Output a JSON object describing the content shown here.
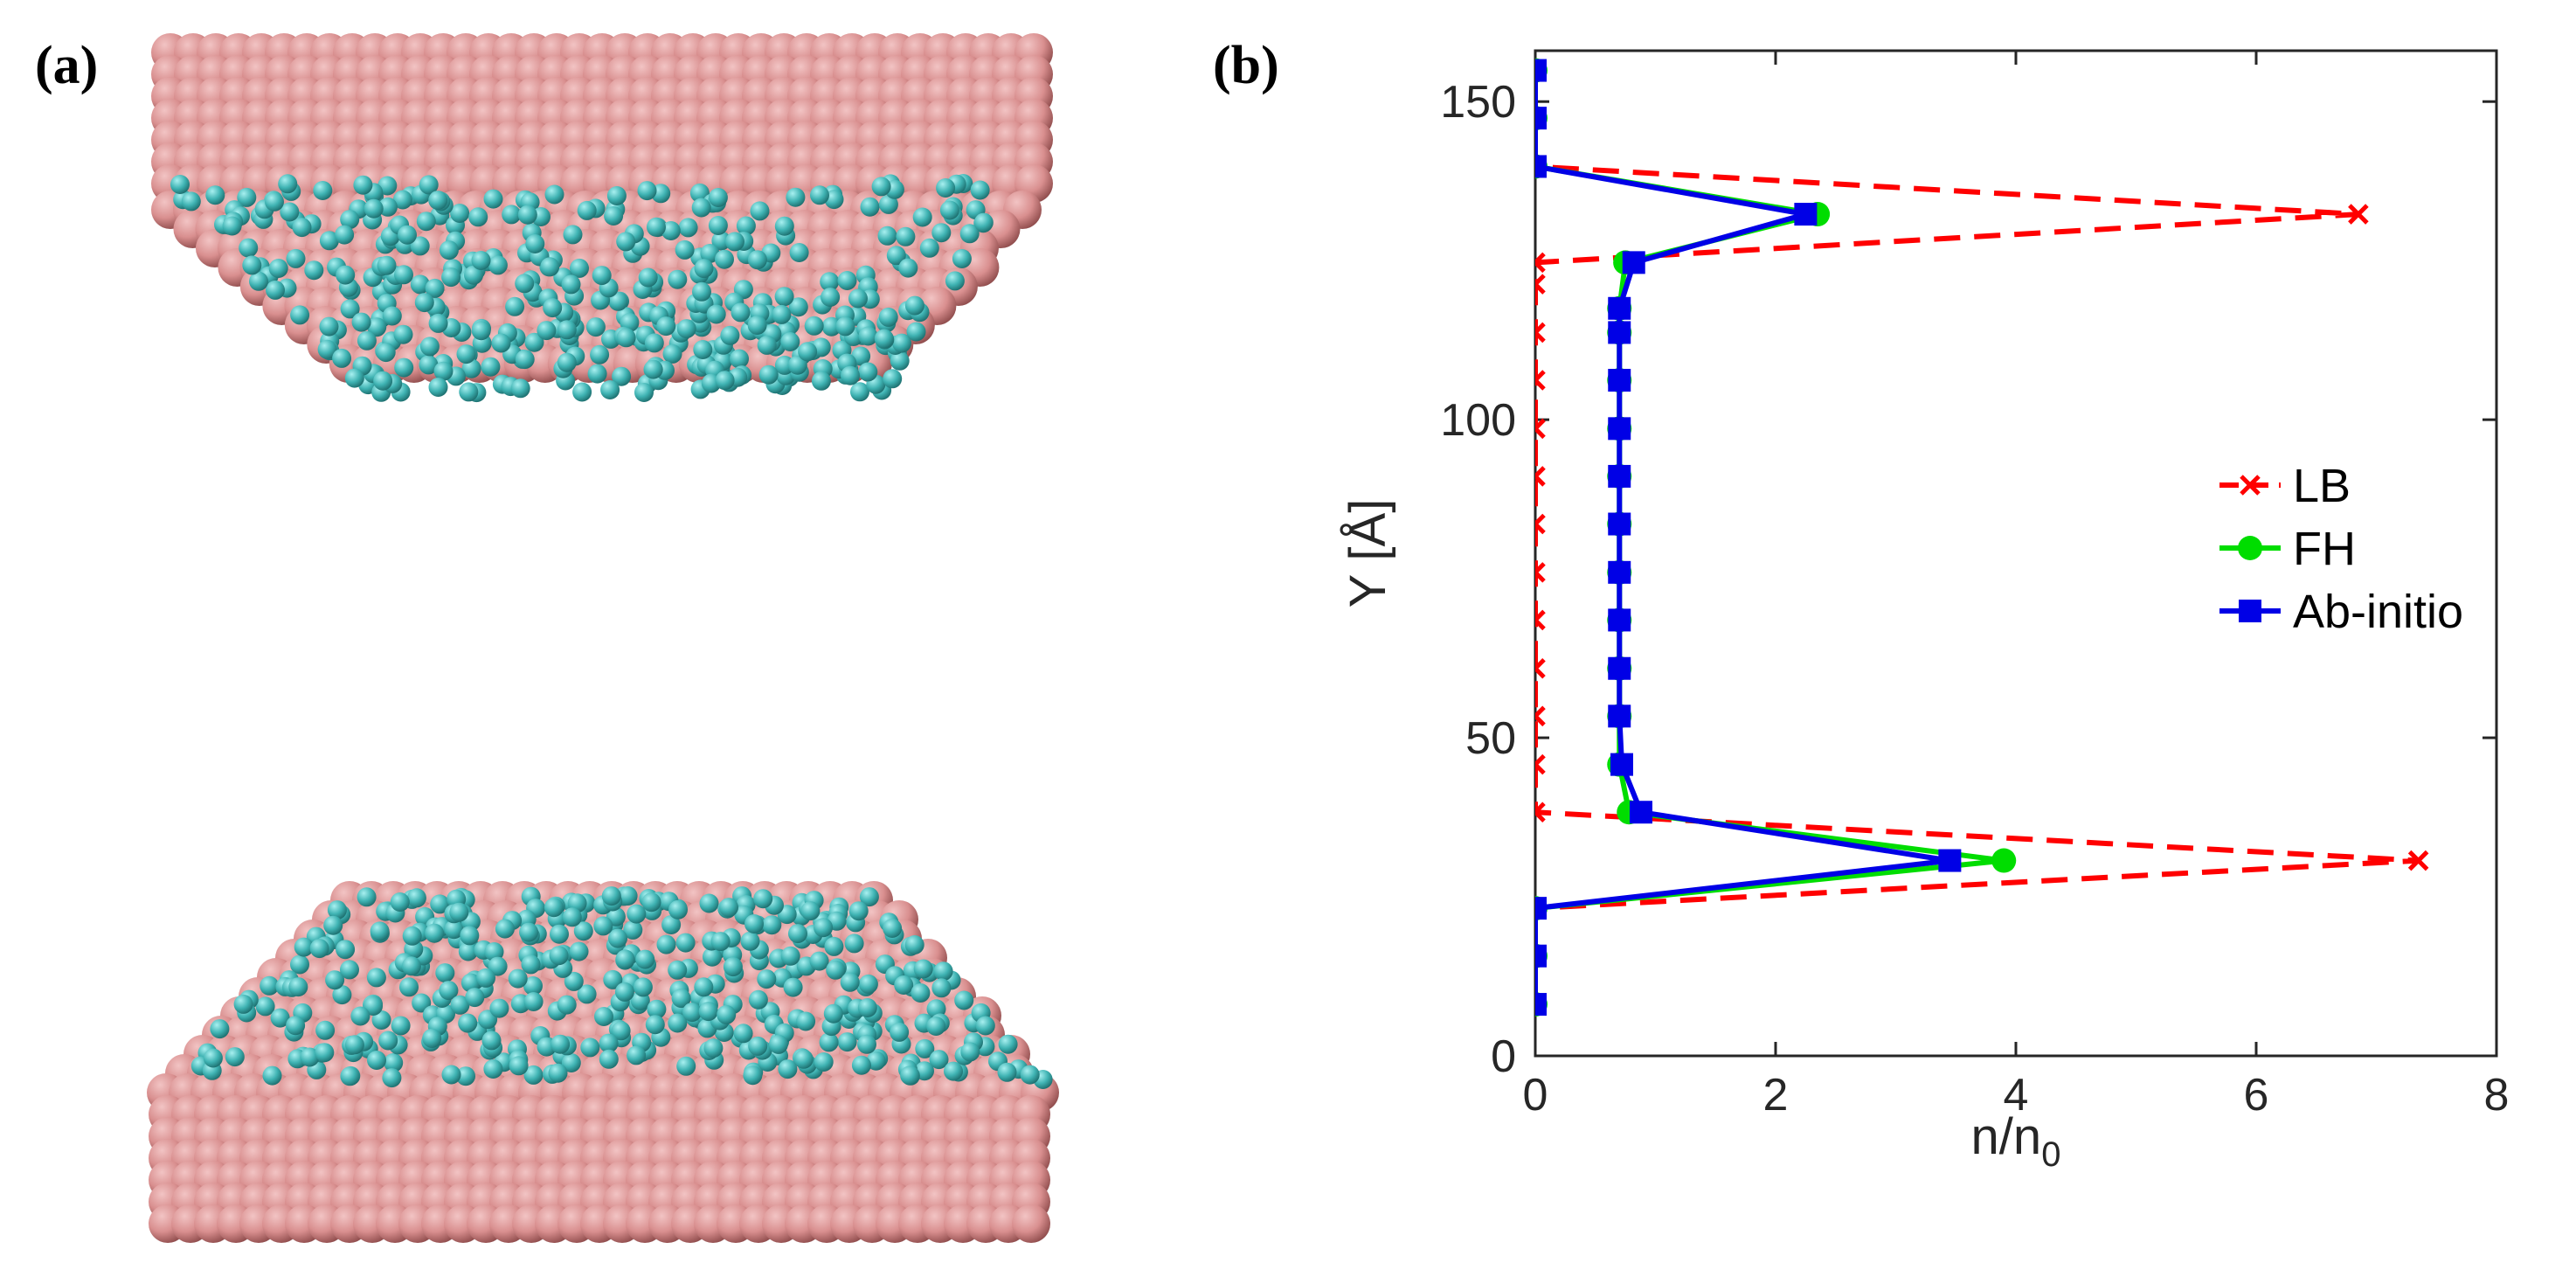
{
  "panels": {
    "a_label": "(a)",
    "b_label": "(b)"
  },
  "colors": {
    "substrate": "#d98f8f",
    "substrate_light": "#f2c4c4",
    "substrate_dark": "#8e4b4b",
    "adatom": "#3fb3b3",
    "adatom_light": "#a8f0f0",
    "adatom_dark": "#1b6b6b",
    "lb": "#ff0000",
    "fh": "#00dd00",
    "abinitio": "#0000e6",
    "axis": "#262626"
  },
  "chart_data": {
    "type": "line",
    "title": "",
    "xlabel": "n/n",
    "xlabel_sub": "0",
    "ylabel": "Y [Å]",
    "xlim": [
      0,
      8
    ],
    "ylim": [
      0,
      158
    ],
    "xticks": [
      0,
      2,
      4,
      6,
      8
    ],
    "yticks": [
      0,
      50,
      100,
      150
    ],
    "grid": false,
    "legend_position": "right",
    "series": [
      {
        "name": "LB",
        "style": "dashed",
        "marker": "x",
        "points": [
          [
            0,
            8.1
          ],
          [
            0,
            15.7
          ],
          [
            0,
            23.2
          ],
          [
            7.35,
            30.7
          ],
          [
            0,
            38.3
          ],
          [
            0,
            45.8
          ],
          [
            0,
            53.4
          ],
          [
            0,
            60.9
          ],
          [
            0,
            68.5
          ],
          [
            0,
            76.0
          ],
          [
            0,
            83.6
          ],
          [
            0,
            91.1
          ],
          [
            0,
            98.6
          ],
          [
            0,
            106.2
          ],
          [
            0,
            113.7
          ],
          [
            0,
            121.3
          ],
          [
            0,
            124.7
          ],
          [
            6.85,
            132.3
          ],
          [
            0,
            139.8
          ],
          [
            0,
            147.4
          ],
          [
            0,
            154.9
          ]
        ]
      },
      {
        "name": "FH",
        "style": "solid",
        "marker": "circle",
        "points": [
          [
            0,
            8.1
          ],
          [
            0,
            15.7
          ],
          [
            0,
            23.2
          ],
          [
            3.9,
            30.7
          ],
          [
            0.78,
            38.3
          ],
          [
            0.7,
            45.8
          ],
          [
            0.7,
            53.4
          ],
          [
            0.7,
            60.9
          ],
          [
            0.7,
            68.5
          ],
          [
            0.7,
            76.0
          ],
          [
            0.7,
            83.6
          ],
          [
            0.7,
            91.1
          ],
          [
            0.7,
            98.6
          ],
          [
            0.7,
            106.2
          ],
          [
            0.7,
            113.7
          ],
          [
            0.7,
            117.5
          ],
          [
            0.75,
            124.7
          ],
          [
            2.35,
            132.3
          ],
          [
            0,
            139.8
          ],
          [
            0,
            147.4
          ],
          [
            0,
            154.9
          ]
        ]
      },
      {
        "name": "Ab-initio",
        "style": "solid",
        "marker": "square",
        "points": [
          [
            0,
            8.1
          ],
          [
            0,
            15.7
          ],
          [
            0,
            23.2
          ],
          [
            3.45,
            30.7
          ],
          [
            0.88,
            38.3
          ],
          [
            0.72,
            45.8
          ],
          [
            0.7,
            53.4
          ],
          [
            0.7,
            60.9
          ],
          [
            0.7,
            68.5
          ],
          [
            0.7,
            76.0
          ],
          [
            0.7,
            83.6
          ],
          [
            0.7,
            91.1
          ],
          [
            0.7,
            98.6
          ],
          [
            0.7,
            106.2
          ],
          [
            0.7,
            113.7
          ],
          [
            0.7,
            117.5
          ],
          [
            0.82,
            124.7
          ],
          [
            2.25,
            132.3
          ],
          [
            0,
            139.8
          ],
          [
            0,
            147.4
          ],
          [
            0,
            154.9
          ]
        ]
      }
    ]
  }
}
